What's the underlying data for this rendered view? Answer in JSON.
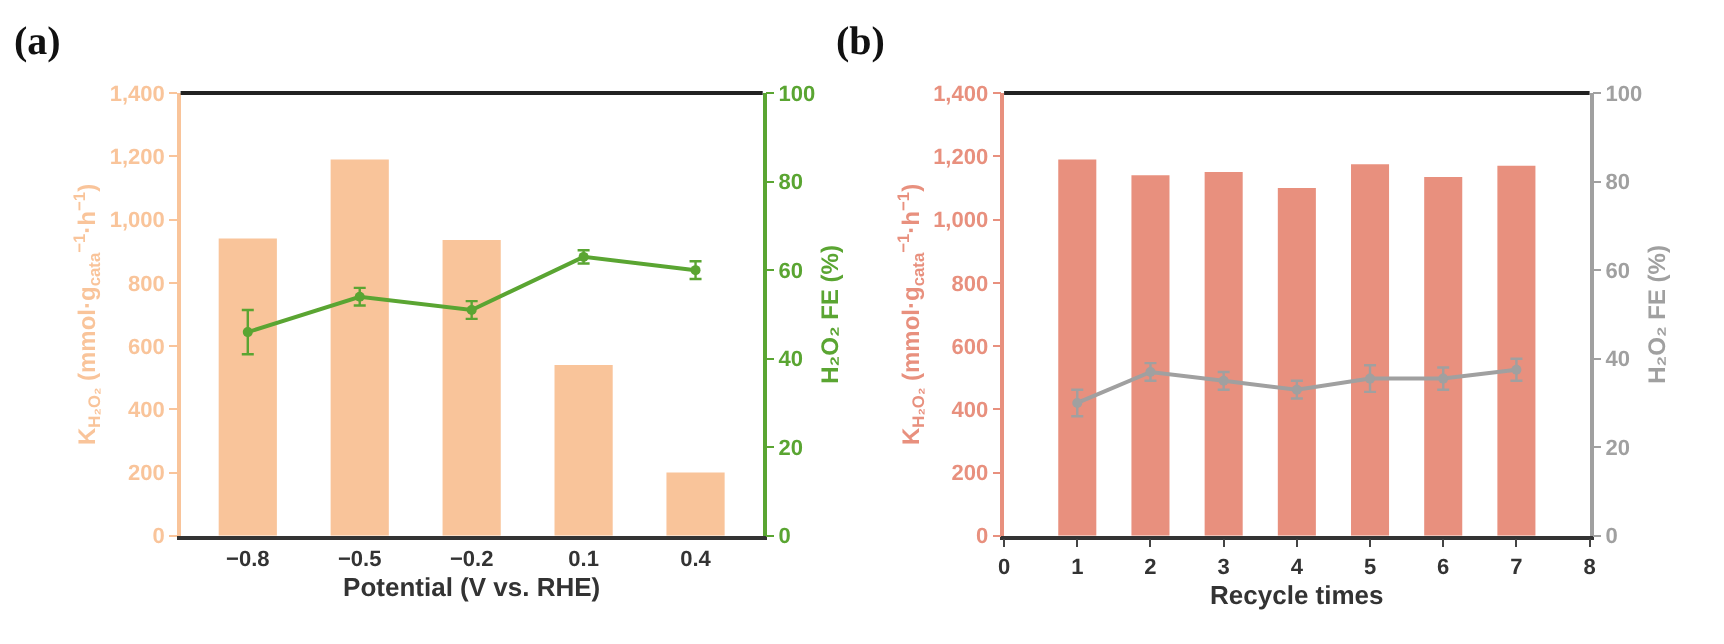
{
  "chart_data": [
    {
      "type": "bar",
      "title": "(a)",
      "xlabel": "Potential (V vs. RHE)",
      "ylabel": "K$_{H₂O₂}$ (mmol·g$_{cata}$$^{−1}$·h$^{−1}$)",
      "y2label": "H₂O₂ FE (%)",
      "categories": [
        "−0.8",
        "−0.5",
        "−0.2",
        "0.1",
        "0.4"
      ],
      "series": [
        {
          "color": "#f9c49a",
          "values": [
            940,
            1190,
            935,
            540,
            200
          ]
        },
        {
          "type": "line",
          "axis": "y2",
          "color": "#5aa532",
          "values": [
            46,
            54,
            51,
            63,
            60
          ],
          "errors": [
            5,
            2,
            2,
            1.5,
            2
          ]
        }
      ],
      "ylim": [
        0,
        1400
      ],
      "yticks": [
        0,
        200,
        400,
        600,
        800,
        {
          "value": 1000,
          "label": "1,000"
        },
        {
          "value": 1200,
          "label": "1,200"
        },
        {
          "value": 1400,
          "label": "1,400"
        }
      ],
      "y2lim": [
        0,
        100
      ],
      "y2ticks": [
        0,
        20,
        40,
        60,
        80,
        100
      ],
      "marker": "circle"
    },
    {
      "type": "bar",
      "title": "(b)",
      "xlabel": "Recycle times",
      "ylabel": "K$_{H₂O₂}$ (mmol·g$_{cata}$$^{−1}$·h$^{−1}$)",
      "y2label": "H₂O₂ FE (%)",
      "x": [
        1,
        2,
        3,
        4,
        5,
        6,
        7
      ],
      "series": [
        {
          "color": "#e8907e",
          "values": [
            1190,
            1140,
            1150,
            1100,
            1175,
            1135,
            1170
          ]
        },
        {
          "type": "line",
          "axis": "y2",
          "color": "#a0a0a0",
          "values": [
            30,
            37,
            35,
            33,
            35.5,
            35.5,
            37.5
          ],
          "errors": [
            3,
            2,
            2,
            2,
            3,
            2.5,
            2.5
          ]
        }
      ],
      "xlim": [
        0,
        8
      ],
      "xticks": [
        0,
        1,
        2,
        3,
        4,
        5,
        6,
        7,
        8
      ],
      "ylim": [
        0,
        1400
      ],
      "yticks": [
        0,
        200,
        400,
        600,
        800,
        {
          "value": 1000,
          "label": "1,000"
        },
        {
          "value": 1200,
          "label": "1,200"
        },
        {
          "value": 1400,
          "label": "1,400"
        }
      ],
      "y2lim": [
        0,
        100
      ],
      "y2ticks": [
        0,
        20,
        40,
        60,
        80,
        100
      ],
      "marker": "circle"
    }
  ]
}
